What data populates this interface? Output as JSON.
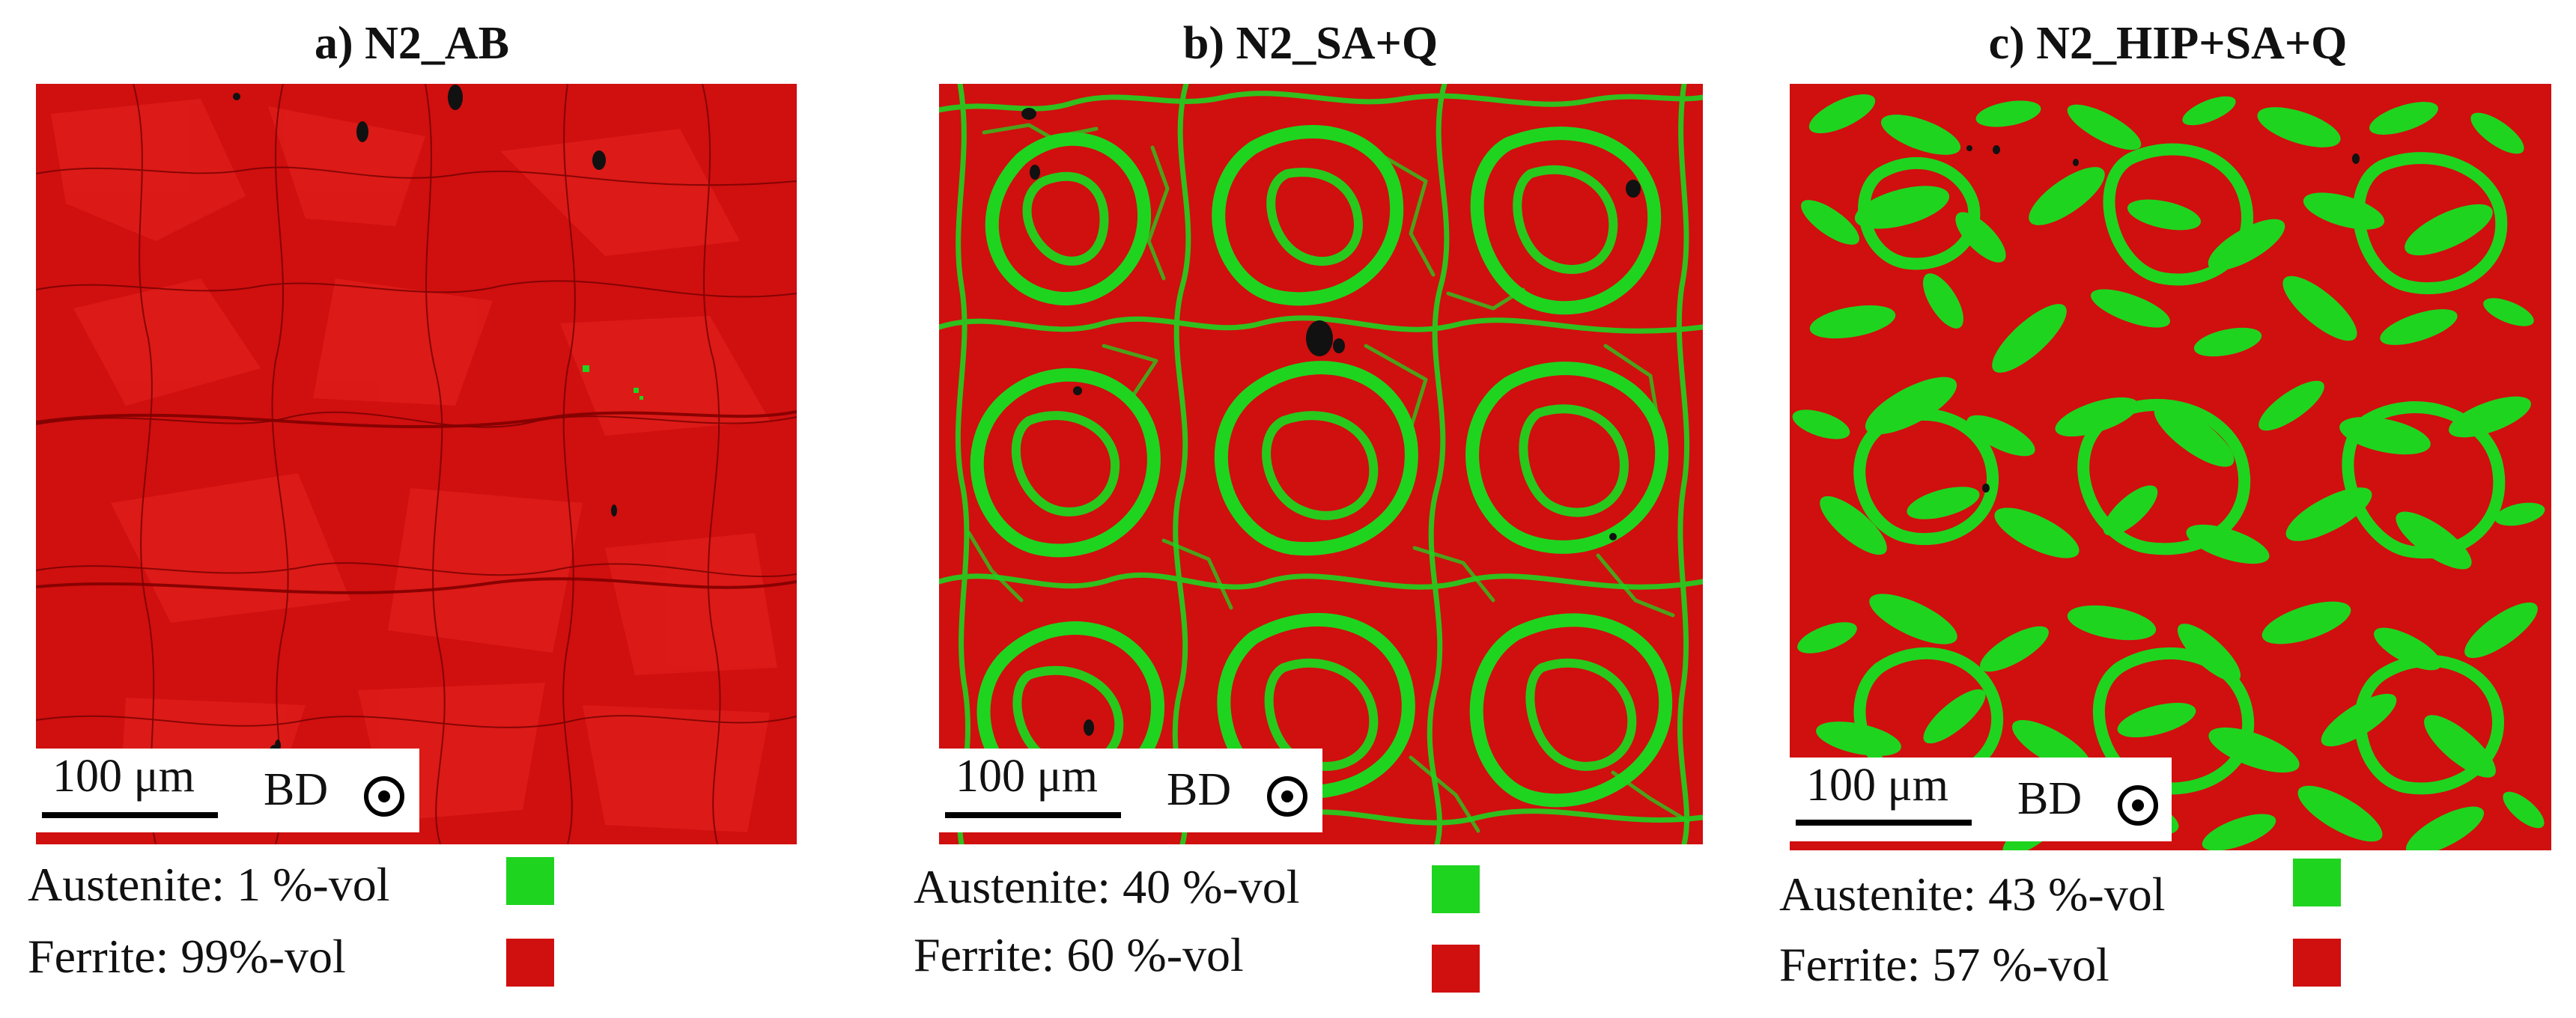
{
  "colors": {
    "austenite": "#1fd41f",
    "ferrite": "#d00f0f",
    "ferrite_dark": "#b30a0a",
    "pore": "#111111"
  },
  "panels": [
    {
      "title": "a) N2_AB",
      "scale_label": "100 μm",
      "bd_label": "BD",
      "austenite_text": "Austenite: 1 %-vol",
      "ferrite_text": "Ferrite: 99%-vol",
      "austenite_fraction": 0.01
    },
    {
      "title": "b) N2_SA+Q",
      "scale_label": "100 μm",
      "bd_label": "BD",
      "austenite_text": "Austenite: 40 %-vol",
      "ferrite_text": "Ferrite: 60 %-vol",
      "austenite_fraction": 0.4
    },
    {
      "title": "c) N2_HIP+SA+Q",
      "scale_label": "100 μm",
      "bd_label": "BD",
      "austenite_text": "Austenite: 43 %-vol",
      "ferrite_text": "Ferrite: 57 %-vol",
      "austenite_fraction": 0.43
    }
  ],
  "icons": {
    "bd": "circle-dot-icon"
  }
}
